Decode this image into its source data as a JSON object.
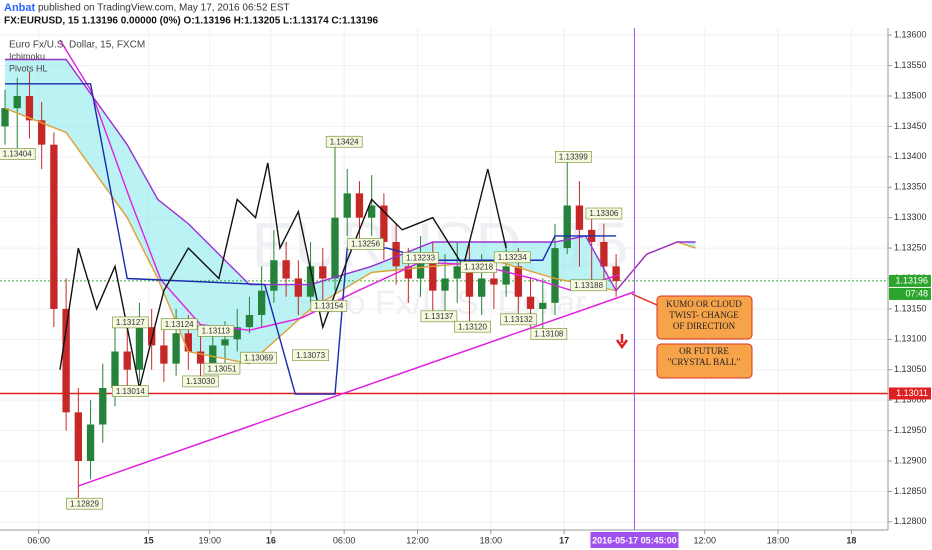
{
  "header": {
    "author": "Anbat",
    "published": "published on TradingView.com, May 17, 2016 06:52 EST",
    "quote": "FX:EURUSD, 15  1.13196 0.00000 (0%)  O:1.13196 H:1.13205 L:1.13174 C:1.13196"
  },
  "chart_data": {
    "type": "candlestick",
    "legend": [
      "Euro Fx/U.S. Dollar, 15, FXCM",
      "Ichimoku",
      "Pivots HL"
    ],
    "watermark": [
      "EURUSD, 15",
      "Euro Fx/U.S. Dollar"
    ],
    "up_color": "#26823a",
    "down_color": "#c62828",
    "xlim": [
      0,
      288
    ],
    "xticks": [
      {
        "value": 11,
        "label": "06:00"
      },
      {
        "value": 47,
        "label": "15"
      },
      {
        "value": 67,
        "label": "19:00"
      },
      {
        "value": 87,
        "label": "16"
      },
      {
        "value": 111,
        "label": "06:00"
      },
      {
        "value": 135,
        "label": "12:00"
      },
      {
        "value": 159,
        "label": "18:00"
      },
      {
        "value": 183,
        "label": "17"
      },
      {
        "value": 229,
        "label": "12:00"
      },
      {
        "value": 253,
        "label": "18:00"
      },
      {
        "value": 277,
        "label": "18"
      }
    ],
    "cursor": {
      "x": 206,
      "label": "2016-05-17 05:45:00"
    },
    "ylim": [
      1.1278,
      1.1362
    ],
    "yticks": [
      {
        "value": 1.128,
        "label": "1.12800"
      },
      {
        "value": 1.1285,
        "label": "1.12850"
      },
      {
        "value": 1.129,
        "label": "1.12900"
      },
      {
        "value": 1.1295,
        "label": "1.12950"
      },
      {
        "value": 1.13,
        "label": "1.13000"
      },
      {
        "value": 1.1305,
        "label": "1.13050"
      },
      {
        "value": 1.131,
        "label": "1.13100"
      },
      {
        "value": 1.1315,
        "label": "1.13150"
      },
      {
        "value": 1.132,
        "label": "1.13200"
      },
      {
        "value": 1.1325,
        "label": "1.13250"
      },
      {
        "value": 1.133,
        "label": "1.13300"
      },
      {
        "value": 1.1335,
        "label": "1.13350"
      },
      {
        "value": 1.134,
        "label": "1.13400"
      },
      {
        "value": 1.1345,
        "label": "1.13450"
      },
      {
        "value": 1.135,
        "label": "1.13500"
      },
      {
        "value": 1.1355,
        "label": "1.13550"
      },
      {
        "value": 1.136,
        "label": "1.13600"
      }
    ],
    "x": [
      0,
      4,
      8,
      12,
      16,
      20,
      24,
      28,
      32,
      36,
      40,
      44,
      48,
      52,
      56,
      60,
      64,
      68,
      72,
      76,
      80,
      84,
      88,
      92,
      96,
      100,
      104,
      108,
      112,
      116,
      120,
      124,
      128,
      132,
      136,
      140,
      144,
      148,
      152,
      156,
      160,
      164,
      168,
      172,
      176,
      180,
      184,
      188,
      192,
      196,
      200
    ],
    "open": [
      1.1345,
      1.1348,
      1.135,
      1.1346,
      1.1342,
      1.1315,
      1.1298,
      1.129,
      1.1296,
      1.1302,
      1.1308,
      1.1305,
      1.1312,
      1.1309,
      1.1306,
      1.1311,
      1.1308,
      1.1306,
      1.1309,
      1.131,
      1.1312,
      1.1314,
      1.1318,
      1.1323,
      1.132,
      1.1317,
      1.1322,
      1.132,
      1.133,
      1.1334,
      1.133,
      1.1332,
      1.1326,
      1.1322,
      1.132,
      1.1323,
      1.1318,
      1.132,
      1.1322,
      1.1317,
      1.132,
      1.1319,
      1.1322,
      1.1317,
      1.1315,
      1.1316,
      1.1325,
      1.1332,
      1.1328,
      1.1326,
      1.1322
    ],
    "high": [
      1.1351,
      1.1353,
      1.1354,
      1.1349,
      1.1344,
      1.132,
      1.1302,
      1.13,
      1.1306,
      1.1312,
      1.1313,
      1.1316,
      1.1315,
      1.1313,
      1.1315,
      1.1314,
      1.1311,
      1.1312,
      1.1313,
      1.1315,
      1.1317,
      1.1322,
      1.1328,
      1.1326,
      1.1323,
      1.1326,
      1.1325,
      1.13424,
      1.1338,
      1.1336,
      1.1337,
      1.1334,
      1.1329,
      1.1325,
      1.1327,
      1.1326,
      1.1324,
      1.1326,
      1.1326,
      1.1324,
      1.1323,
      1.1326,
      1.1325,
      1.132,
      1.132,
      1.1329,
      1.13399,
      1.1336,
      1.1331,
      1.1329,
      1.1324
    ],
    "low": [
      1.1342,
      1.13404,
      1.1343,
      1.1338,
      1.1312,
      1.1295,
      1.12829,
      1.1287,
      1.1293,
      1.1299,
      1.13014,
      1.1303,
      1.1305,
      1.1303,
      1.1304,
      1.1305,
      1.1303,
      1.13051,
      1.1306,
      1.1308,
      1.1311,
      1.1312,
      1.1316,
      1.1317,
      1.1314,
      1.1316,
      1.1315,
      1.1318,
      1.1327,
      1.1326,
      1.1327,
      1.1323,
      1.1319,
      1.1316,
      1.1317,
      1.13137,
      1.1314,
      1.1316,
      1.1312,
      1.1314,
      1.1315,
      1.1317,
      1.13132,
      1.1312,
      1.13108,
      1.1314,
      1.1324,
      1.1322,
      1.13188,
      1.1318,
      1.1317
    ],
    "close": [
      1.1348,
      1.135,
      1.1346,
      1.1342,
      1.1315,
      1.1298,
      1.129,
      1.1296,
      1.1302,
      1.1308,
      1.1305,
      1.1312,
      1.1309,
      1.1306,
      1.1311,
      1.1308,
      1.1306,
      1.1309,
      1.131,
      1.1312,
      1.1314,
      1.1318,
      1.1323,
      1.132,
      1.1317,
      1.1322,
      1.132,
      1.133,
      1.1334,
      1.133,
      1.1332,
      1.1326,
      1.1322,
      1.132,
      1.1323,
      1.1318,
      1.132,
      1.1322,
      1.1317,
      1.132,
      1.1319,
      1.1322,
      1.1317,
      1.1315,
      1.1316,
      1.1325,
      1.1332,
      1.1328,
      1.1326,
      1.1322,
      1.13196
    ],
    "lines": [
      {
        "name": "span-a",
        "color": "#e0a030",
        "x": [
          0,
          20,
          40,
          50,
          60,
          80,
          100,
          120,
          140,
          160,
          180,
          190,
          200,
          210,
          220,
          226
        ],
        "values": [
          1.1348,
          1.1344,
          1.133,
          1.132,
          1.1308,
          1.1306,
          1.1315,
          1.1321,
          1.1322,
          1.1323,
          1.132,
          1.1319,
          1.1318,
          1.1324,
          1.1326,
          1.1325
        ]
      },
      {
        "name": "span-b",
        "color": "#9b30d0",
        "x": [
          0,
          20,
          40,
          50,
          60,
          80,
          100,
          120,
          140,
          160,
          180,
          190,
          200,
          210,
          220,
          226
        ],
        "values": [
          1.1356,
          1.1356,
          1.1342,
          1.1333,
          1.1329,
          1.1319,
          1.1319,
          1.1322,
          1.1326,
          1.1326,
          1.1326,
          1.1327,
          1.1318,
          1.1324,
          1.1326,
          1.1326
        ]
      },
      {
        "name": "ma",
        "color": "#e020e0",
        "x": [
          18,
          28,
          41,
          51,
          64,
          80,
          97,
          116,
          136,
          155,
          172,
          185,
          201
        ],
        "values": [
          1.13592,
          1.1351,
          1.13329,
          1.13198,
          1.13124,
          1.13115,
          1.13135,
          1.13181,
          1.13227,
          1.13222,
          1.13201,
          1.13181,
          1.13206
        ]
      },
      {
        "name": "kijun",
        "color": "#1a2ab0",
        "x": [
          0,
          28,
          40,
          85,
          95,
          108,
          112,
          125,
          140,
          176,
          180,
          200
        ],
        "values": [
          1.1352,
          1.1352,
          1.132,
          1.1319,
          1.1301,
          1.1301,
          1.1325,
          1.1325,
          1.1323,
          1.1323,
          1.1327,
          1.1327
        ]
      },
      {
        "name": "lagging",
        "color": "#111111",
        "x": [
          18,
          24,
          30,
          36,
          44,
          52,
          60,
          70,
          76,
          82,
          86,
          90,
          96,
          104,
          112,
          120,
          130,
          140,
          150,
          158,
          164
        ],
        "values": [
          1.1305,
          1.1325,
          1.1315,
          1.1322,
          1.1302,
          1.1318,
          1.1325,
          1.132,
          1.1333,
          1.133,
          1.1339,
          1.1325,
          1.1331,
          1.1312,
          1.1323,
          1.1333,
          1.1328,
          1.133,
          1.1322,
          1.1338,
          1.1325
        ]
      }
    ],
    "pivots": [
      {
        "x": 4,
        "value": 1.13404
      },
      {
        "x": 111,
        "value": 1.13424
      },
      {
        "x": 41,
        "value": 1.13127
      },
      {
        "x": 57,
        "value": 1.13124
      },
      {
        "x": 69,
        "value": 1.13113
      },
      {
        "x": 41,
        "value": 1.13014
      },
      {
        "x": 64,
        "value": 1.1303,
        "label": "1.13030"
      },
      {
        "x": 71,
        "value": 1.13051
      },
      {
        "x": 83,
        "value": 1.13069
      },
      {
        "x": 100,
        "value": 1.13073
      },
      {
        "x": 106,
        "value": 1.13154
      },
      {
        "x": 118,
        "value": 1.13256
      },
      {
        "x": 136,
        "value": 1.13233
      },
      {
        "x": 155,
        "value": 1.13218
      },
      {
        "x": 166,
        "value": 1.13234
      },
      {
        "x": 142,
        "value": 1.13137
      },
      {
        "x": 153,
        "value": 1.1312,
        "label": "1.13120"
      },
      {
        "x": 168,
        "value": 1.13132
      },
      {
        "x": 178,
        "value": 1.13108
      },
      {
        "x": 186,
        "value": 1.13399
      },
      {
        "x": 196,
        "value": 1.13306
      },
      {
        "x": 191,
        "value": 1.13188
      },
      {
        "x": 26,
        "value": 1.12829
      }
    ],
    "trendline": {
      "x": [
        24,
        206
      ],
      "values": [
        1.12859,
        1.13178
      ]
    },
    "level": {
      "value": 1.13011,
      "color": "#e02020"
    },
    "last_price": {
      "value": 1.13196,
      "countdown": "07:48"
    },
    "annotations": [
      [
        "KUMO OR CLOUD",
        "TWIST- CHANGE",
        "OF DIRECTION"
      ],
      [
        "OR FUTURE",
        "\"CRYSTAL BALL\""
      ]
    ]
  }
}
